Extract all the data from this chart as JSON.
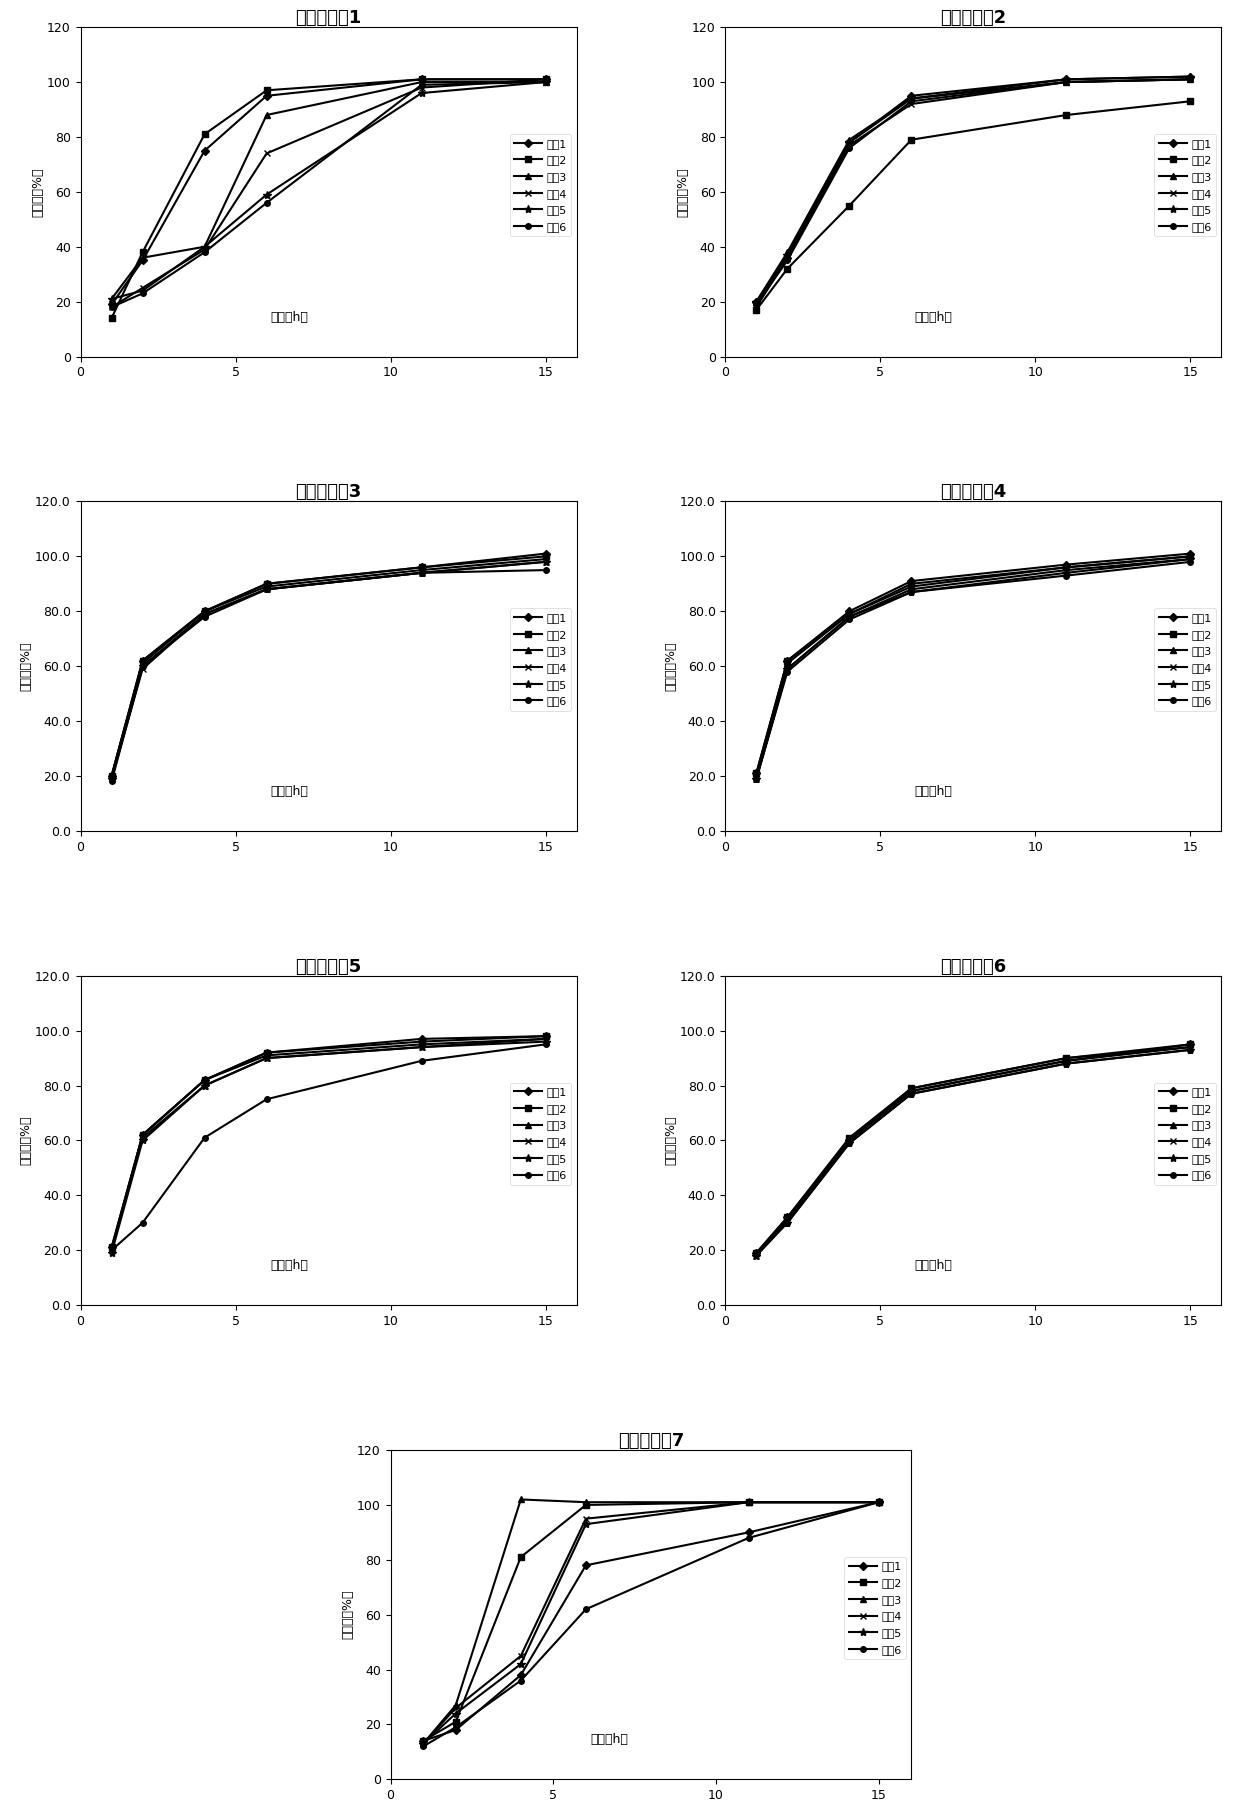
{
  "charts": [
    {
      "title": "对比实施例1",
      "ylabel": "释放度（%）",
      "xlabel": "时间（h）",
      "ylim": [
        0,
        120
      ],
      "yticks": [
        0,
        20,
        40,
        60,
        80,
        100,
        120
      ],
      "xlim": [
        0,
        16
      ],
      "xticks": [
        0,
        5,
        10,
        15
      ],
      "decimal_yticks": false,
      "series": [
        {
          "label": "样品1",
          "x": [
            1,
            2,
            4,
            6,
            11,
            15
          ],
          "y": [
            19,
            35,
            75,
            95,
            101,
            101
          ],
          "marker": "D",
          "ms": 4
        },
        {
          "label": "样品2",
          "x": [
            1,
            2,
            4,
            6,
            11,
            15
          ],
          "y": [
            14,
            38,
            81,
            97,
            101,
            101
          ],
          "marker": "s",
          "ms": 4
        },
        {
          "label": "样品3",
          "x": [
            1,
            2,
            4,
            6,
            11,
            15
          ],
          "y": [
            21,
            36,
            40,
            88,
            100,
            100
          ],
          "marker": "^",
          "ms": 5
        },
        {
          "label": "样品4",
          "x": [
            1,
            2,
            4,
            6,
            11,
            15
          ],
          "y": [
            18,
            25,
            39,
            74,
            98,
            101
          ],
          "marker": "x",
          "ms": 5
        },
        {
          "label": "样品5",
          "x": [
            1,
            2,
            4,
            6,
            11,
            15
          ],
          "y": [
            21,
            24,
            40,
            59,
            96,
            100
          ],
          "marker": "*",
          "ms": 6
        },
        {
          "label": "样品6",
          "x": [
            1,
            2,
            4,
            6,
            11,
            15
          ],
          "y": [
            18,
            23,
            38,
            56,
            99,
            100
          ],
          "marker": "o",
          "ms": 4
        }
      ]
    },
    {
      "title": "对比实施例2",
      "ylabel": "释放度（%）",
      "xlabel": "时间（h）",
      "ylim": [
        0,
        120
      ],
      "yticks": [
        0,
        20,
        40,
        60,
        80,
        100,
        120
      ],
      "xlim": [
        0,
        16
      ],
      "xticks": [
        0,
        5,
        10,
        15
      ],
      "decimal_yticks": false,
      "series": [
        {
          "label": "样品1",
          "x": [
            1,
            2,
            4,
            6,
            11,
            15
          ],
          "y": [
            20,
            36,
            78,
            95,
            101,
            102
          ],
          "marker": "D",
          "ms": 4
        },
        {
          "label": "样品2",
          "x": [
            1,
            2,
            4,
            6,
            11,
            15
          ],
          "y": [
            17,
            32,
            55,
            79,
            88,
            93
          ],
          "marker": "s",
          "ms": 4
        },
        {
          "label": "样品3",
          "x": [
            1,
            2,
            4,
            6,
            11,
            15
          ],
          "y": [
            20,
            38,
            79,
            94,
            100,
            101
          ],
          "marker": "^",
          "ms": 5
        },
        {
          "label": "样品4",
          "x": [
            1,
            2,
            4,
            6,
            11,
            15
          ],
          "y": [
            18,
            36,
            77,
            92,
            100,
            101
          ],
          "marker": "x",
          "ms": 5
        },
        {
          "label": "样品5",
          "x": [
            1,
            2,
            4,
            6,
            11,
            15
          ],
          "y": [
            20,
            37,
            78,
            94,
            101,
            102
          ],
          "marker": "*",
          "ms": 6
        },
        {
          "label": "样品6",
          "x": [
            1,
            2,
            4,
            6,
            11,
            15
          ],
          "y": [
            19,
            35,
            76,
            93,
            100,
            101
          ],
          "marker": "o",
          "ms": 4
        }
      ]
    },
    {
      "title": "对比实施例3",
      "ylabel": "释放度（%）",
      "xlabel": "时间（h）",
      "ylim": [
        0.0,
        120.0
      ],
      "yticks": [
        0.0,
        20.0,
        40.0,
        60.0,
        80.0,
        100.0,
        120.0
      ],
      "xlim": [
        0,
        16
      ],
      "xticks": [
        0,
        5,
        10,
        15
      ],
      "decimal_yticks": true,
      "series": [
        {
          "label": "样品1",
          "x": [
            1,
            2,
            4,
            6,
            11,
            15
          ],
          "y": [
            20,
            62,
            80,
            90,
            96,
            101
          ],
          "marker": "D",
          "ms": 4
        },
        {
          "label": "样品2",
          "x": [
            1,
            2,
            4,
            6,
            11,
            15
          ],
          "y": [
            20,
            62,
            80,
            90,
            96,
            100
          ],
          "marker": "s",
          "ms": 4
        },
        {
          "label": "样品3",
          "x": [
            1,
            2,
            4,
            6,
            11,
            15
          ],
          "y": [
            20,
            61,
            80,
            89,
            95,
            99
          ],
          "marker": "^",
          "ms": 5
        },
        {
          "label": "样品4",
          "x": [
            1,
            2,
            4,
            6,
            11,
            15
          ],
          "y": [
            19,
            59,
            79,
            88,
            94,
            98
          ],
          "marker": "x",
          "ms": 5
        },
        {
          "label": "样品5",
          "x": [
            1,
            2,
            4,
            6,
            11,
            15
          ],
          "y": [
            19,
            60,
            79,
            88,
            94,
            98
          ],
          "marker": "*",
          "ms": 6
        },
        {
          "label": "样品6",
          "x": [
            1,
            2,
            4,
            6,
            11,
            15
          ],
          "y": [
            18,
            60,
            78,
            88,
            94,
            95
          ],
          "marker": "o",
          "ms": 4
        }
      ]
    },
    {
      "title": "对比实施例4",
      "ylabel": "释放度（%）",
      "xlabel": "时间（h）",
      "ylim": [
        0.0,
        120.0
      ],
      "yticks": [
        0.0,
        20.0,
        40.0,
        60.0,
        80.0,
        100.0,
        120.0
      ],
      "xlim": [
        0,
        16
      ],
      "xticks": [
        0,
        5,
        10,
        15
      ],
      "decimal_yticks": true,
      "series": [
        {
          "label": "样品1",
          "x": [
            1,
            2,
            4,
            6,
            11,
            15
          ],
          "y": [
            21,
            62,
            80,
            91,
            97,
            101
          ],
          "marker": "D",
          "ms": 4
        },
        {
          "label": "样品2",
          "x": [
            1,
            2,
            4,
            6,
            11,
            15
          ],
          "y": [
            21,
            62,
            79,
            90,
            96,
            100
          ],
          "marker": "s",
          "ms": 4
        },
        {
          "label": "样品3",
          "x": [
            1,
            2,
            4,
            6,
            11,
            15
          ],
          "y": [
            20,
            61,
            79,
            89,
            96,
            100
          ],
          "marker": "^",
          "ms": 5
        },
        {
          "label": "样品4",
          "x": [
            1,
            2,
            4,
            6,
            11,
            15
          ],
          "y": [
            19,
            59,
            78,
            88,
            95,
            99
          ],
          "marker": "x",
          "ms": 5
        },
        {
          "label": "样品5",
          "x": [
            1,
            2,
            4,
            6,
            11,
            15
          ],
          "y": [
            19,
            59,
            78,
            87,
            94,
            99
          ],
          "marker": "*",
          "ms": 6
        },
        {
          "label": "样品6",
          "x": [
            1,
            2,
            4,
            6,
            11,
            15
          ],
          "y": [
            19,
            58,
            77,
            87,
            93,
            98
          ],
          "marker": "o",
          "ms": 4
        }
      ]
    },
    {
      "title": "对比实施例5",
      "ylabel": "释放度（%）",
      "xlabel": "时间（h）",
      "ylim": [
        0.0,
        120.0
      ],
      "yticks": [
        0.0,
        20.0,
        40.0,
        60.0,
        80.0,
        100.0,
        120.0
      ],
      "xlim": [
        0,
        16
      ],
      "xticks": [
        0,
        5,
        10,
        15
      ],
      "decimal_yticks": true,
      "series": [
        {
          "label": "样品1",
          "x": [
            1,
            2,
            4,
            6,
            11,
            15
          ],
          "y": [
            21,
            62,
            82,
            92,
            97,
            98
          ],
          "marker": "D",
          "ms": 4
        },
        {
          "label": "样品2",
          "x": [
            1,
            2,
            4,
            6,
            11,
            15
          ],
          "y": [
            21,
            62,
            82,
            92,
            96,
            98
          ],
          "marker": "s",
          "ms": 4
        },
        {
          "label": "样品3",
          "x": [
            1,
            2,
            4,
            6,
            11,
            15
          ],
          "y": [
            20,
            62,
            82,
            91,
            95,
            97
          ],
          "marker": "^",
          "ms": 5
        },
        {
          "label": "样品4",
          "x": [
            1,
            2,
            4,
            6,
            11,
            15
          ],
          "y": [
            20,
            61,
            80,
            90,
            94,
            97
          ],
          "marker": "x",
          "ms": 5
        },
        {
          "label": "样品5",
          "x": [
            1,
            2,
            4,
            6,
            11,
            15
          ],
          "y": [
            19,
            60,
            80,
            90,
            94,
            96
          ],
          "marker": "*",
          "ms": 6
        },
        {
          "label": "样品6",
          "x": [
            1,
            2,
            4,
            6,
            11,
            15
          ],
          "y": [
            20,
            30,
            61,
            75,
            89,
            95
          ],
          "marker": "o",
          "ms": 4
        }
      ]
    },
    {
      "title": "对比实施例6",
      "ylabel": "释放度（%）",
      "xlabel": "时间（h）",
      "ylim": [
        0.0,
        120.0
      ],
      "yticks": [
        0.0,
        20.0,
        40.0,
        60.0,
        80.0,
        100.0,
        120.0
      ],
      "xlim": [
        0,
        16
      ],
      "xticks": [
        0,
        5,
        10,
        15
      ],
      "decimal_yticks": true,
      "series": [
        {
          "label": "样品1",
          "x": [
            1,
            2,
            4,
            6,
            11,
            15
          ],
          "y": [
            19,
            32,
            60,
            78,
            89,
            95
          ],
          "marker": "D",
          "ms": 4
        },
        {
          "label": "样品2",
          "x": [
            1,
            2,
            4,
            6,
            11,
            15
          ],
          "y": [
            19,
            32,
            61,
            79,
            90,
            95
          ],
          "marker": "s",
          "ms": 4
        },
        {
          "label": "样品3",
          "x": [
            1,
            2,
            4,
            6,
            11,
            15
          ],
          "y": [
            19,
            31,
            60,
            79,
            90,
            94
          ],
          "marker": "^",
          "ms": 5
        },
        {
          "label": "样品4",
          "x": [
            1,
            2,
            4,
            6,
            11,
            15
          ],
          "y": [
            18,
            31,
            60,
            78,
            89,
            94
          ],
          "marker": "x",
          "ms": 5
        },
        {
          "label": "样品5",
          "x": [
            1,
            2,
            4,
            6,
            11,
            15
          ],
          "y": [
            18,
            30,
            59,
            77,
            88,
            93
          ],
          "marker": "*",
          "ms": 6
        },
        {
          "label": "样品6",
          "x": [
            1,
            2,
            4,
            6,
            11,
            15
          ],
          "y": [
            19,
            30,
            59,
            77,
            88,
            93
          ],
          "marker": "o",
          "ms": 4
        }
      ]
    },
    {
      "title": "对比实施例7",
      "ylabel": "释放度（%）",
      "xlabel": "时间（h）",
      "ylim": [
        0,
        120
      ],
      "yticks": [
        0,
        20,
        40,
        60,
        80,
        100,
        120
      ],
      "xlim": [
        0,
        16
      ],
      "xticks": [
        0,
        5,
        10,
        15
      ],
      "decimal_yticks": false,
      "series": [
        {
          "label": "样品1",
          "x": [
            1,
            2,
            4,
            6,
            11,
            15
          ],
          "y": [
            14,
            18,
            38,
            78,
            90,
            101
          ],
          "marker": "D",
          "ms": 4
        },
        {
          "label": "样品2",
          "x": [
            1,
            2,
            4,
            6,
            11,
            15
          ],
          "y": [
            14,
            21,
            81,
            100,
            101,
            101
          ],
          "marker": "s",
          "ms": 4
        },
        {
          "label": "样品3",
          "x": [
            1,
            2,
            4,
            6,
            11,
            15
          ],
          "y": [
            13,
            27,
            102,
            101,
            101,
            101
          ],
          "marker": "^",
          "ms": 5
        },
        {
          "label": "样品4",
          "x": [
            1,
            2,
            4,
            6,
            11,
            15
          ],
          "y": [
            13,
            26,
            45,
            95,
            101,
            101
          ],
          "marker": "x",
          "ms": 5
        },
        {
          "label": "样品5",
          "x": [
            1,
            2,
            4,
            6,
            11,
            15
          ],
          "y": [
            13,
            24,
            42,
            93,
            101,
            101
          ],
          "marker": "*",
          "ms": 6
        },
        {
          "label": "样品6",
          "x": [
            1,
            2,
            4,
            6,
            11,
            15
          ],
          "y": [
            12,
            19,
            36,
            62,
            88,
            101
          ],
          "marker": "o",
          "ms": 4
        }
      ]
    }
  ],
  "line_color": "#000000",
  "bg_color": "#ffffff",
  "title_fontsize": 13,
  "label_fontsize": 9,
  "legend_fontsize": 8,
  "tick_fontsize": 9
}
